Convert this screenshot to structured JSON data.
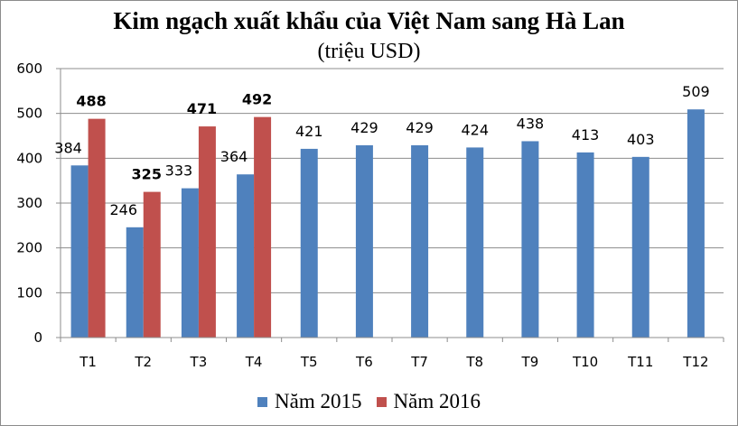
{
  "chart_data": {
    "type": "bar",
    "title": "Kim ngạch xuất khẩu của Việt Nam sang Hà Lan",
    "subtitle": "(triệu USD)",
    "categories": [
      "T1",
      "T2",
      "T3",
      "T4",
      "T5",
      "T6",
      "T7",
      "T8",
      "T9",
      "T10",
      "T11",
      "T12"
    ],
    "series": [
      {
        "name": "Năm 2015",
        "color": "#4f81bd",
        "values": [
          384,
          246,
          333,
          364,
          421,
          429,
          429,
          424,
          438,
          413,
          403,
          509
        ]
      },
      {
        "name": "Năm 2016",
        "color": "#c0504d",
        "values": [
          488,
          325,
          471,
          492,
          null,
          null,
          null,
          null,
          null,
          null,
          null,
          null
        ]
      }
    ],
    "ylim": [
      0,
      600
    ],
    "yticks": [
      0,
      100,
      200,
      300,
      400,
      500,
      600
    ],
    "grid": true,
    "legend": "bottom"
  }
}
